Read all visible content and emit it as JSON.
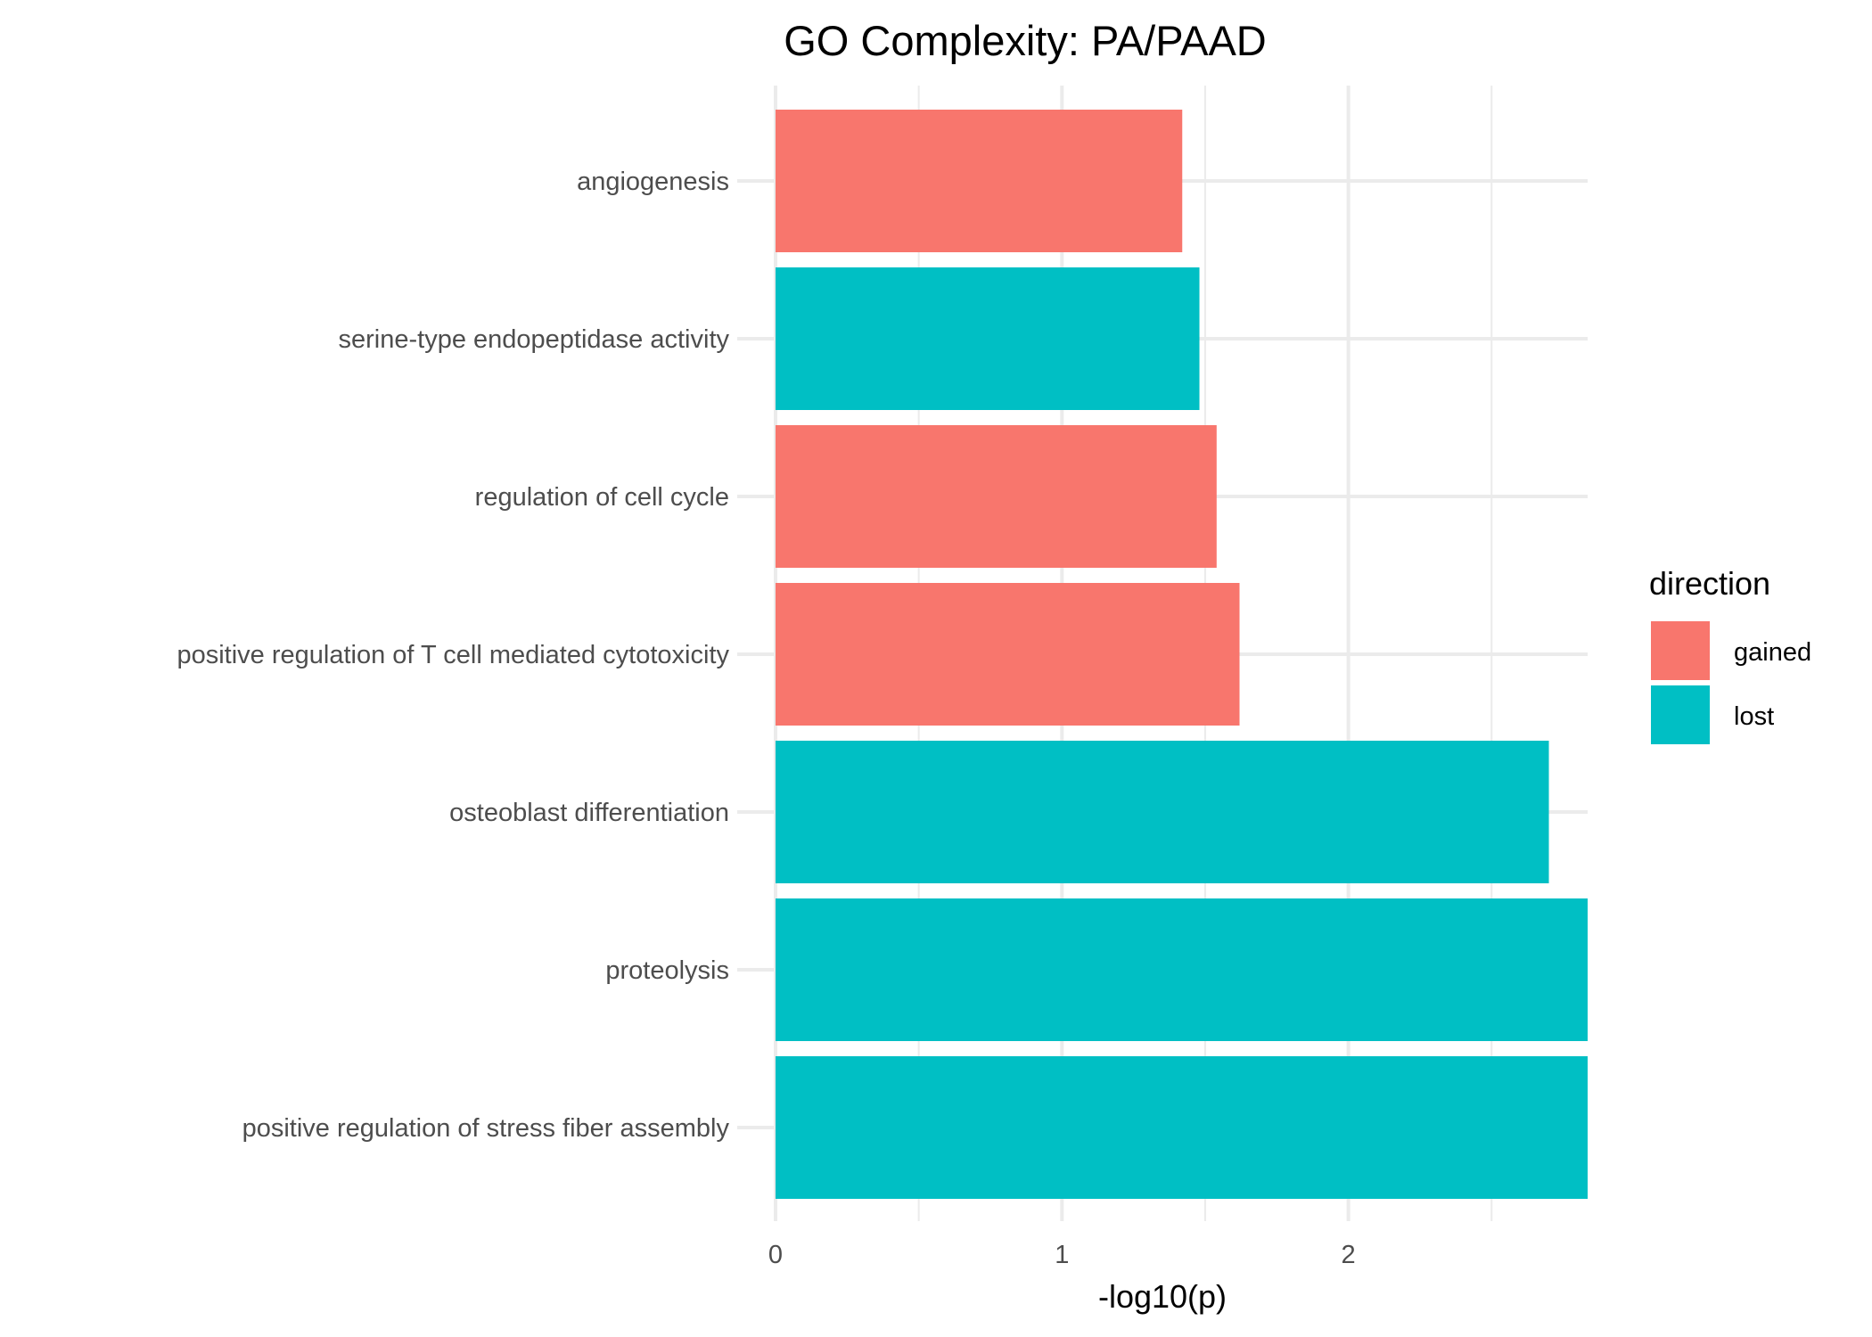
{
  "chart_data": {
    "type": "bar",
    "orientation": "horizontal",
    "title": "GO Complexity: PA/PAAD",
    "xlabel": "-log10(p)",
    "ylabel": "",
    "xlim": [
      0,
      2.84
    ],
    "x_ticks": [
      0,
      1,
      2
    ],
    "x_tick_labels": [
      "0",
      "1",
      "2"
    ],
    "x_minor_ticks": [
      0.5,
      1.5,
      2.5
    ],
    "grid": true,
    "categories": [
      "angiogenesis",
      "serine-type endopeptidase activity",
      "regulation of cell cycle",
      "positive regulation of T cell mediated cytotoxicity",
      "osteoblast differentiation",
      "proteolysis",
      "positive regulation of stress fiber assembly"
    ],
    "values": [
      1.42,
      1.48,
      1.54,
      1.62,
      2.7,
      2.84,
      2.84
    ],
    "direction": [
      "gained",
      "lost",
      "gained",
      "gained",
      "lost",
      "lost",
      "lost"
    ],
    "legend": {
      "title": "direction",
      "position": "right",
      "entries": [
        {
          "label": "gained",
          "color": "#F8766D"
        },
        {
          "label": "lost",
          "color": "#00BFC4"
        }
      ]
    }
  }
}
